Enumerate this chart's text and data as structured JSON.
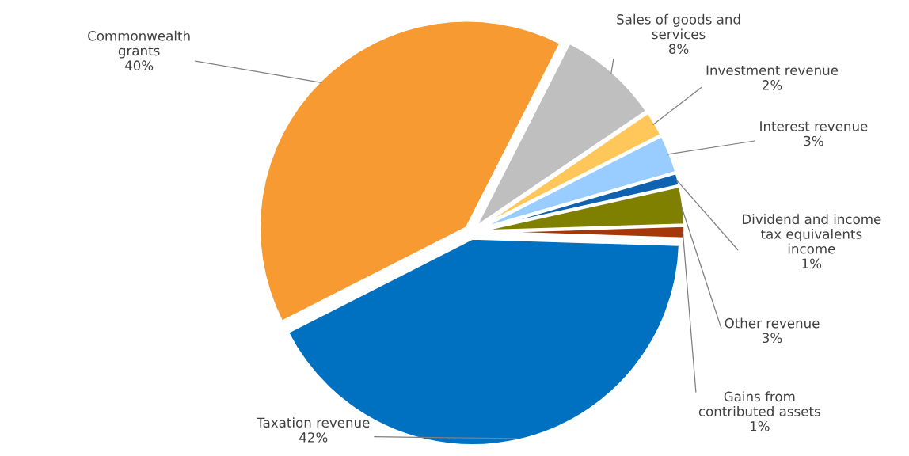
{
  "chart_data": {
    "type": "pie",
    "categories": [
      "Taxation revenue",
      "Commonwealth\ngrants",
      "Sales of goods and\nservices",
      "Investment revenue",
      "Interest revenue",
      "Dividend and income\ntax equivalents\nincome",
      "Other revenue",
      "Gains from\ncontributed assets"
    ],
    "values": [
      42,
      40,
      8,
      2,
      3,
      1,
      3,
      1
    ],
    "value_labels": [
      "42%",
      "40%",
      "8%",
      "2%",
      "3%",
      "1%",
      "3%",
      "1%"
    ],
    "colors": [
      "#0070c0",
      "#f79a32",
      "#bfbfbf",
      "#ffc65a",
      "#99ccff",
      "#0f62b0",
      "#7f7f00",
      "#a5380b"
    ],
    "legend": false
  }
}
